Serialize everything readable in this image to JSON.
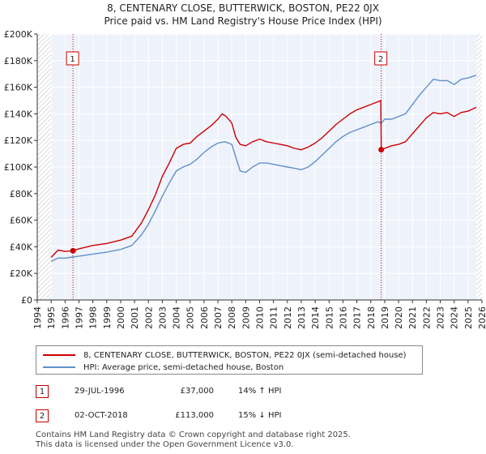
{
  "chart_data": {
    "type": "line",
    "title": "8, CENTENARY CLOSE, BUTTERWICK, BOSTON, PE22 0JX",
    "subtitle": "Price paid vs. HM Land Registry's House Price Index (HPI)",
    "xlim": [
      1994,
      2026
    ],
    "ylim": [
      0,
      200000
    ],
    "x_ticks": [
      "1994",
      "1995",
      "1996",
      "1997",
      "1998",
      "1999",
      "2000",
      "2001",
      "2002",
      "2003",
      "2004",
      "2005",
      "2006",
      "2007",
      "2008",
      "2009",
      "2010",
      "2011",
      "2012",
      "2013",
      "2014",
      "2015",
      "2016",
      "2017",
      "2018",
      "2019",
      "2020",
      "2021",
      "2022",
      "2023",
      "2024",
      "2025",
      "2026"
    ],
    "y_ticks": [
      "£0",
      "£20K",
      "£40K",
      "£60K",
      "£80K",
      "£100K",
      "£120K",
      "£140K",
      "£160K",
      "£180K",
      "£200K"
    ],
    "data_start_year": 1995.0,
    "data_end_year": 2025.6,
    "series": [
      {
        "name": "8, CENTENARY CLOSE, BUTTERWICK, BOSTON, PE22 0JX (semi-detached house)",
        "color": "#cc0000",
        "points": [
          [
            1995.0,
            32000
          ],
          [
            1995.5,
            37500
          ],
          [
            1996.0,
            36500
          ],
          [
            1996.57,
            37000
          ],
          [
            1997.0,
            38500
          ],
          [
            1998.0,
            41000
          ],
          [
            1999.0,
            42500
          ],
          [
            2000.0,
            45000
          ],
          [
            2000.8,
            48000
          ],
          [
            2001.5,
            58000
          ],
          [
            2002.0,
            68000
          ],
          [
            2002.5,
            79000
          ],
          [
            2003.0,
            93000
          ],
          [
            2003.5,
            103000
          ],
          [
            2004.0,
            114000
          ],
          [
            2004.5,
            117000
          ],
          [
            2005.0,
            118000
          ],
          [
            2005.5,
            123000
          ],
          [
            2006.0,
            127000
          ],
          [
            2006.5,
            131000
          ],
          [
            2007.0,
            136000
          ],
          [
            2007.3,
            140000
          ],
          [
            2007.6,
            138000
          ],
          [
            2008.0,
            133000
          ],
          [
            2008.3,
            122000
          ],
          [
            2008.6,
            117000
          ],
          [
            2009.0,
            116000
          ],
          [
            2009.5,
            119000
          ],
          [
            2010.0,
            121000
          ],
          [
            2010.5,
            119000
          ],
          [
            2011.0,
            118000
          ],
          [
            2011.5,
            117000
          ],
          [
            2012.0,
            116000
          ],
          [
            2012.5,
            114000
          ],
          [
            2013.0,
            113000
          ],
          [
            2013.5,
            115000
          ],
          [
            2014.0,
            118000
          ],
          [
            2014.5,
            122000
          ],
          [
            2015.0,
            127000
          ],
          [
            2015.5,
            132000
          ],
          [
            2016.0,
            136000
          ],
          [
            2016.5,
            140000
          ],
          [
            2017.0,
            143000
          ],
          [
            2017.5,
            145000
          ],
          [
            2018.0,
            147000
          ],
          [
            2018.5,
            149000
          ],
          [
            2018.72,
            150000
          ],
          [
            2018.752,
            113000
          ],
          [
            2019.0,
            114000
          ],
          [
            2019.5,
            116000
          ],
          [
            2020.0,
            117000
          ],
          [
            2020.5,
            119000
          ],
          [
            2021.0,
            125000
          ],
          [
            2021.5,
            131000
          ],
          [
            2022.0,
            137000
          ],
          [
            2022.5,
            141000
          ],
          [
            2023.0,
            140000
          ],
          [
            2023.5,
            141000
          ],
          [
            2024.0,
            138000
          ],
          [
            2024.5,
            141000
          ],
          [
            2025.0,
            142000
          ],
          [
            2025.6,
            145000
          ]
        ]
      },
      {
        "name": "HPI: Average price, semi-detached house, Boston",
        "color": "#6090c8",
        "points": [
          [
            1995.0,
            29000
          ],
          [
            1995.5,
            31500
          ],
          [
            1996.0,
            31500
          ],
          [
            1996.57,
            32300
          ],
          [
            1997.0,
            33000
          ],
          [
            1998.0,
            34500
          ],
          [
            1999.0,
            36000
          ],
          [
            2000.0,
            38000
          ],
          [
            2000.8,
            41000
          ],
          [
            2001.5,
            49000
          ],
          [
            2002.0,
            57000
          ],
          [
            2002.5,
            67000
          ],
          [
            2003.0,
            78000
          ],
          [
            2003.5,
            88000
          ],
          [
            2004.0,
            97000
          ],
          [
            2004.5,
            100000
          ],
          [
            2005.0,
            102000
          ],
          [
            2005.5,
            106000
          ],
          [
            2006.0,
            111000
          ],
          [
            2006.5,
            115000
          ],
          [
            2007.0,
            118000
          ],
          [
            2007.5,
            119000
          ],
          [
            2008.0,
            117000
          ],
          [
            2008.3,
            107000
          ],
          [
            2008.6,
            97000
          ],
          [
            2009.0,
            96000
          ],
          [
            2009.5,
            100000
          ],
          [
            2010.0,
            103000
          ],
          [
            2010.5,
            103000
          ],
          [
            2011.0,
            102000
          ],
          [
            2011.5,
            101000
          ],
          [
            2012.0,
            100000
          ],
          [
            2012.5,
            99000
          ],
          [
            2013.0,
            98000
          ],
          [
            2013.5,
            100000
          ],
          [
            2014.0,
            104000
          ],
          [
            2014.5,
            109000
          ],
          [
            2015.0,
            114000
          ],
          [
            2015.5,
            119000
          ],
          [
            2016.0,
            123000
          ],
          [
            2016.5,
            126000
          ],
          [
            2017.0,
            128000
          ],
          [
            2017.5,
            130000
          ],
          [
            2018.0,
            132000
          ],
          [
            2018.5,
            134000
          ],
          [
            2018.752,
            133000
          ],
          [
            2019.0,
            136000
          ],
          [
            2019.5,
            136000
          ],
          [
            2020.0,
            138000
          ],
          [
            2020.5,
            140000
          ],
          [
            2021.0,
            147000
          ],
          [
            2021.5,
            154000
          ],
          [
            2022.0,
            160000
          ],
          [
            2022.5,
            166000
          ],
          [
            2023.0,
            165000
          ],
          [
            2023.5,
            165000
          ],
          [
            2024.0,
            162000
          ],
          [
            2024.5,
            166000
          ],
          [
            2025.0,
            167000
          ],
          [
            2025.6,
            169000
          ]
        ]
      }
    ],
    "markers": [
      {
        "label": "1",
        "x": 1996.57,
        "y": 37000
      },
      {
        "label": "2",
        "x": 2018.752,
        "y": 113000
      }
    ]
  },
  "legend": {
    "property_label": "8, CENTENARY CLOSE, BUTTERWICK, BOSTON, PE22 0JX (semi-detached house)",
    "hpi_label": "HPI: Average price, semi-detached house, Boston"
  },
  "transactions": [
    {
      "num": "1",
      "date": "29-JUL-1996",
      "price": "£37,000",
      "hpi": "14% ↑ HPI"
    },
    {
      "num": "2",
      "date": "02-OCT-2018",
      "price": "£113,000",
      "hpi": "15% ↓ HPI"
    }
  ],
  "footer": {
    "line1": "Contains HM Land Registry data © Crown copyright and database right 2025.",
    "line2": "This data is licensed under the Open Government Licence v3.0."
  },
  "colors": {
    "property": "#cc0000",
    "hpi": "#6090c8",
    "plot_bg": "#eef2fb",
    "grid": "#ffffff"
  }
}
